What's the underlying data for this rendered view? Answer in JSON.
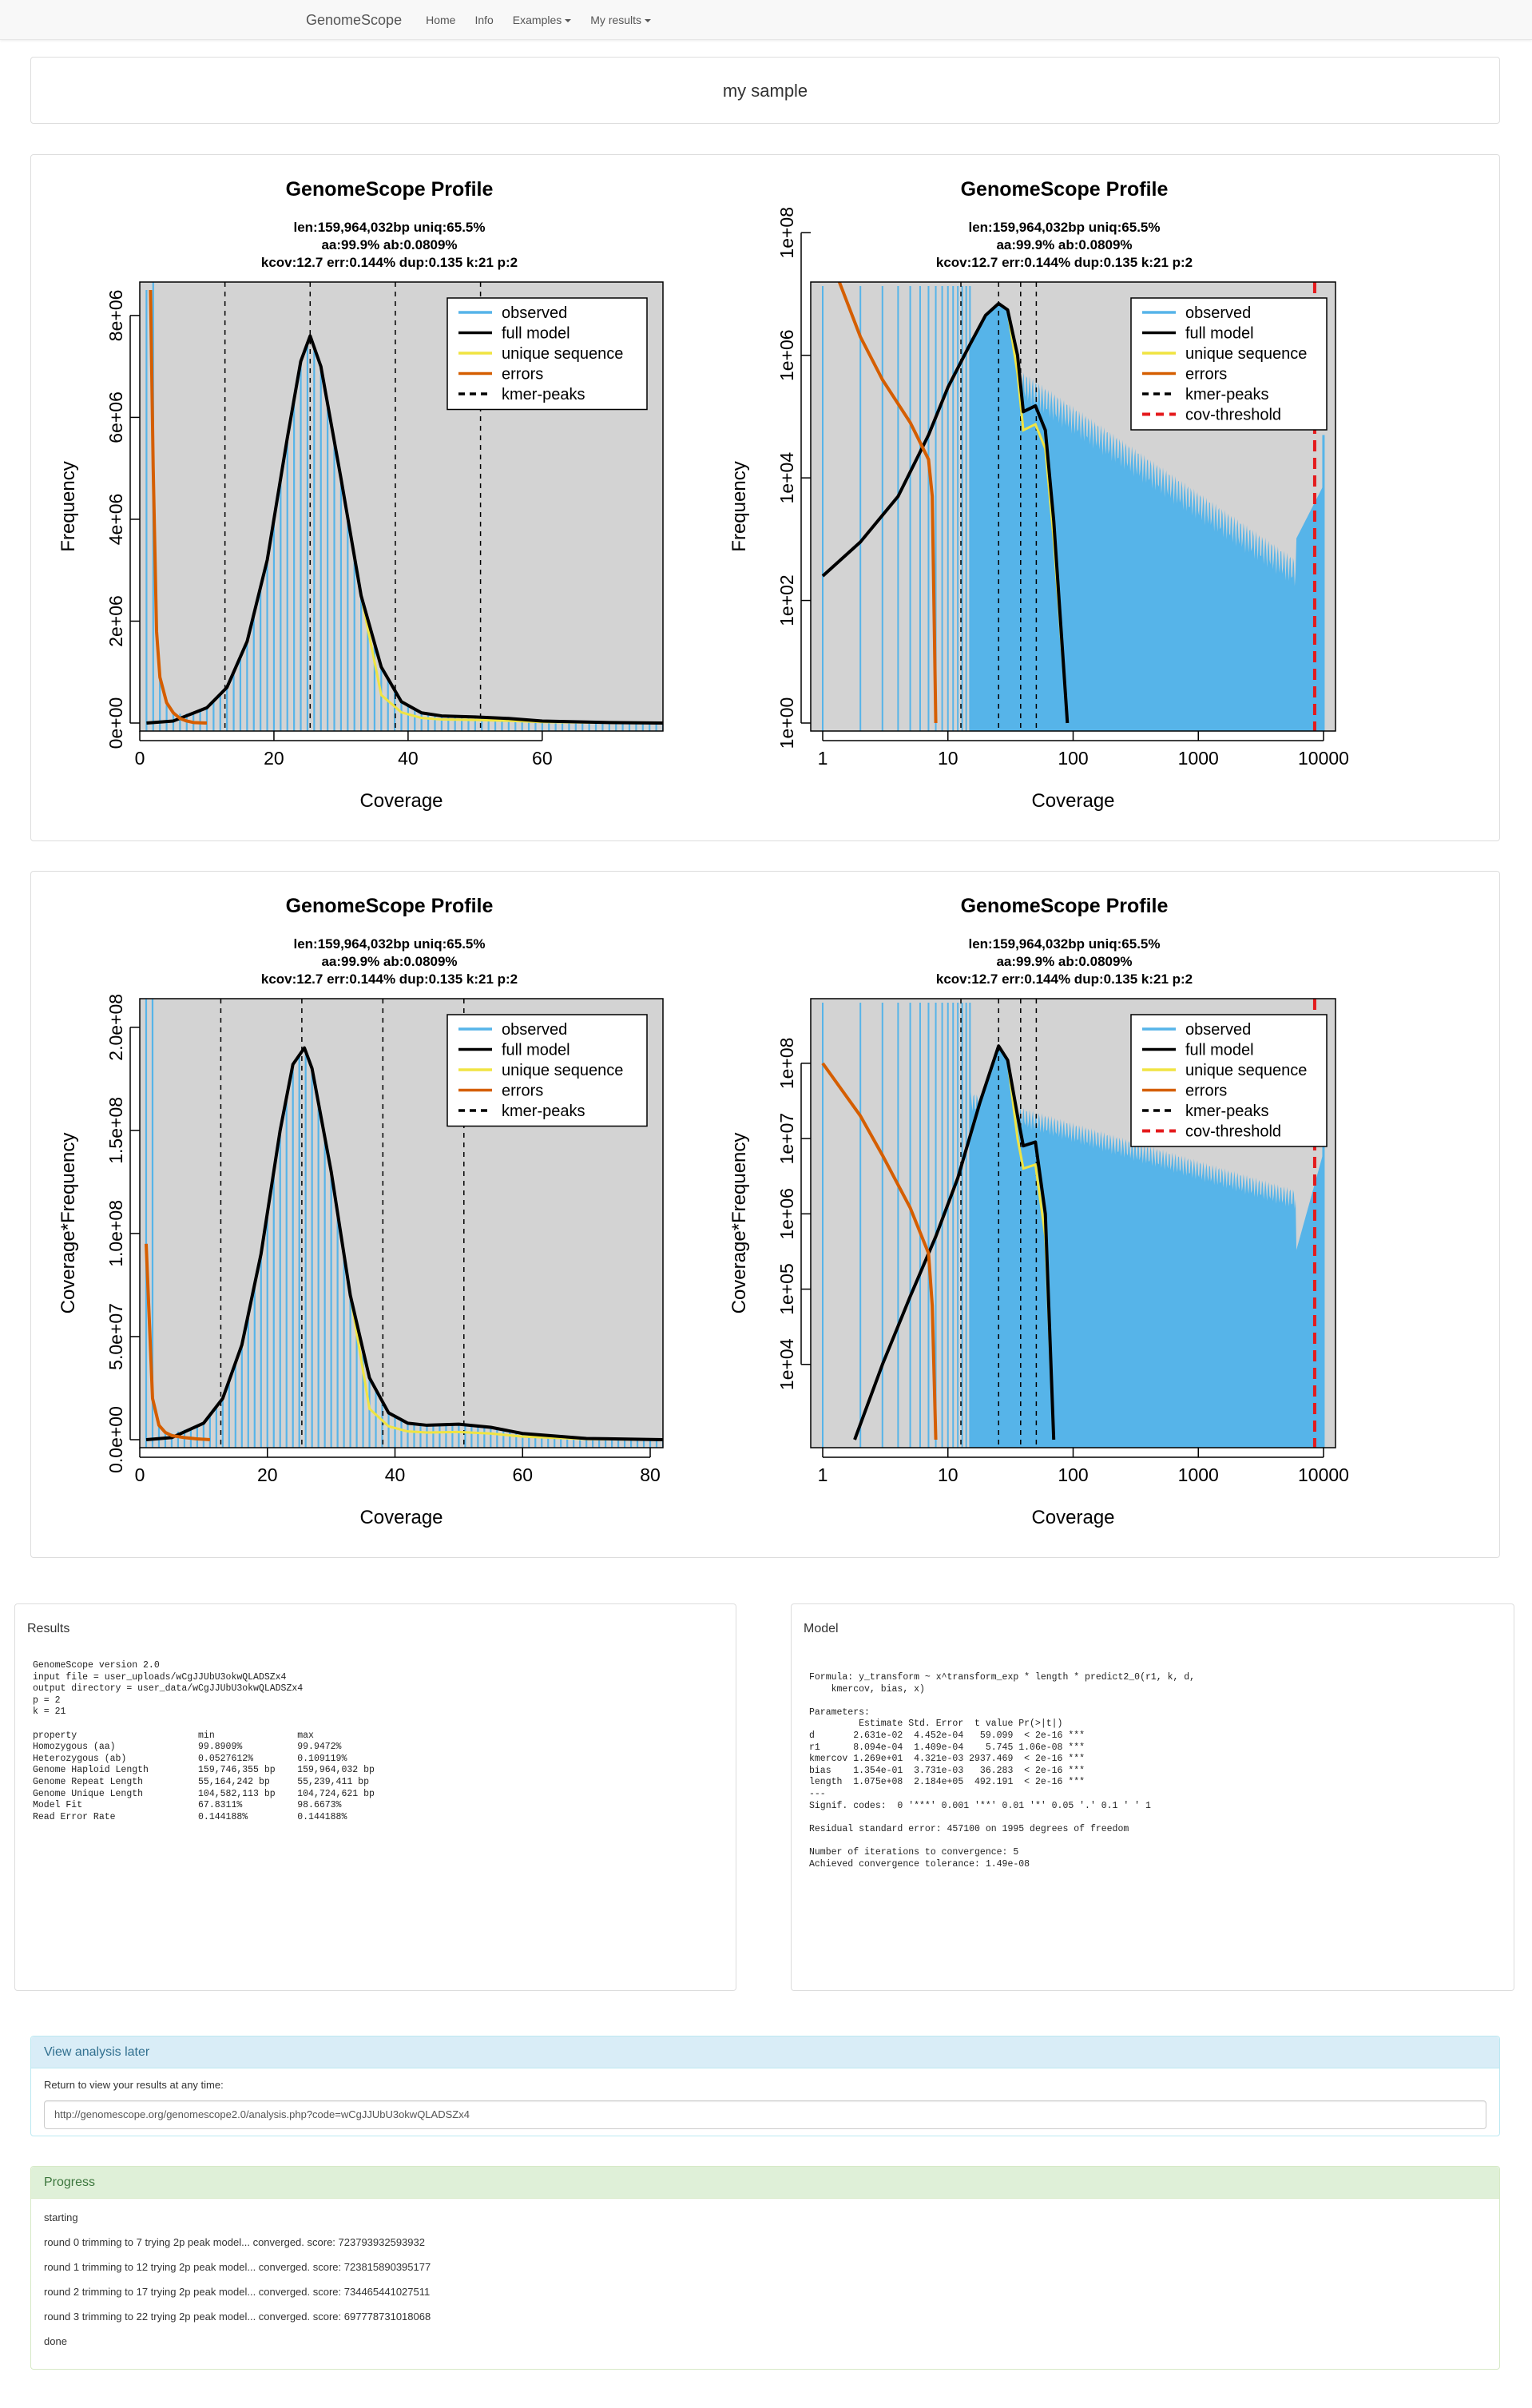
{
  "nav": {
    "brand": "GenomeScope",
    "items": [
      "Home",
      "Info",
      "Examples",
      "My results"
    ]
  },
  "sample_title": "my sample",
  "chart_data": [
    {
      "type": "line",
      "title": "GenomeScope Profile",
      "subtitle": [
        "len:159,964,032bp uniq:65.5%",
        "aa:99.9% ab:0.0809%",
        "kcov:12.7 err:0.144%  dup:0.135  k:21 p:2"
      ],
      "xlabel": "Coverage",
      "ylabel": "Frequency",
      "xscale": "linear",
      "yscale": "linear",
      "xlim": [
        0,
        78
      ],
      "ylim": [
        0,
        8500000
      ],
      "xticks": [
        "0",
        "20",
        "40",
        "60"
      ],
      "yticks": [
        "0e+00",
        "2e+06",
        "4e+06",
        "6e+06",
        "8e+06"
      ],
      "legend": [
        {
          "name": "observed",
          "color": "#56B4E9"
        },
        {
          "name": "full model",
          "color": "#000000"
        },
        {
          "name": "unique sequence",
          "color": "#F0E442"
        },
        {
          "name": "errors",
          "color": "#D55E00"
        },
        {
          "name": "kmer-peaks",
          "color": "#000000",
          "dash": true
        }
      ],
      "kmer_peaks": [
        12.7,
        25.4,
        38.1,
        50.8
      ],
      "series": [
        {
          "name": "full model",
          "x": [
            1,
            5,
            10,
            13,
            16,
            19,
            22,
            24,
            25.4,
            27,
            30,
            33,
            36,
            39,
            42,
            45,
            50,
            55,
            60,
            70,
            78
          ],
          "values": [
            0,
            40000,
            300000,
            700000,
            1600000,
            3200000,
            5600000,
            7100000,
            7600000,
            7000000,
            4800000,
            2500000,
            1100000,
            420000,
            200000,
            140000,
            120000,
            90000,
            40000,
            10000,
            0
          ]
        },
        {
          "name": "errors",
          "x": [
            1.6,
            2,
            2.5,
            3,
            4,
            5,
            6,
            7,
            8,
            10
          ],
          "values": [
            8500000,
            5000000,
            1800000,
            900000,
            400000,
            200000,
            90000,
            40000,
            10000,
            0
          ]
        }
      ]
    },
    {
      "type": "line",
      "title": "GenomeScope Profile",
      "subtitle": [
        "len:159,964,032bp uniq:65.5%",
        "aa:99.9% ab:0.0809%",
        "kcov:12.7 err:0.144%  dup:0.135  k:21 p:2"
      ],
      "xlabel": "Coverage",
      "ylabel": "Frequency",
      "xscale": "log",
      "yscale": "log",
      "xlim": [
        1,
        10000
      ],
      "ylim": [
        1,
        10000000
      ],
      "xticks": [
        "1",
        "10",
        "100",
        "1000",
        "10000"
      ],
      "yticks": [
        "1e+00",
        "1e+02",
        "1e+04",
        "1e+06",
        "1e+08"
      ],
      "legend": [
        {
          "name": "observed",
          "color": "#56B4E9"
        },
        {
          "name": "full model",
          "color": "#000000"
        },
        {
          "name": "unique sequence",
          "color": "#F0E442"
        },
        {
          "name": "errors",
          "color": "#D55E00"
        },
        {
          "name": "kmer-peaks",
          "color": "#000000",
          "dash": true
        },
        {
          "name": "cov-threshold",
          "color": "#E41A1C",
          "dash": true
        }
      ],
      "kmer_peaks": [
        12.7,
        25.4,
        38.1,
        50.8
      ],
      "cov_threshold": 8500,
      "series": [
        {
          "name": "full model",
          "x": [
            1,
            2,
            4,
            7,
            10,
            15,
            20,
            25.4,
            30,
            36,
            40,
            50,
            60,
            70,
            90
          ],
          "values": [
            250,
            900,
            5000,
            50000,
            300000,
            1500000,
            4500000,
            7000000,
            5500000,
            1000000,
            120000,
            150000,
            60000,
            2000,
            1
          ]
        },
        {
          "name": "errors",
          "x": [
            1,
            2,
            3,
            5,
            7,
            7.5,
            8
          ],
          "values": [
            80000000,
            2000000,
            400000,
            80000,
            20000,
            5000,
            1
          ]
        }
      ]
    },
    {
      "type": "line",
      "title": "GenomeScope Profile",
      "subtitle": [
        "len:159,964,032bp uniq:65.5%",
        "aa:99.9% ab:0.0809%",
        "kcov:12.7 err:0.144%  dup:0.135  k:21 p:2"
      ],
      "xlabel": "Coverage",
      "ylabel": "Coverage*Frequency",
      "xscale": "linear",
      "yscale": "linear",
      "xlim": [
        0,
        82
      ],
      "ylim": [
        0,
        210000000
      ],
      "xticks": [
        "0",
        "20",
        "40",
        "60",
        "80"
      ],
      "yticks": [
        "0.0e+00",
        "5.0e+07",
        "1.0e+08",
        "1.5e+08",
        "2.0e+08"
      ],
      "legend": [
        {
          "name": "observed",
          "color": "#56B4E9"
        },
        {
          "name": "full model",
          "color": "#000000"
        },
        {
          "name": "unique sequence",
          "color": "#F0E442"
        },
        {
          "name": "errors",
          "color": "#D55E00"
        },
        {
          "name": "kmer-peaks",
          "color": "#000000",
          "dash": true
        }
      ],
      "kmer_peaks": [
        12.7,
        25.4,
        38.1,
        50.8
      ],
      "series": [
        {
          "name": "full model",
          "x": [
            1,
            5,
            10,
            13,
            16,
            19,
            22,
            24,
            25.8,
            27,
            30,
            33,
            36,
            39,
            42,
            45,
            50,
            55,
            60,
            70,
            82
          ],
          "values": [
            0,
            1000000,
            8000000,
            20000000,
            46000000,
            90000000,
            150000000,
            182000000,
            190000000,
            180000000,
            130000000,
            70000000,
            30000000,
            13000000,
            8000000,
            7000000,
            7500000,
            6000000,
            3000000,
            600000,
            0
          ]
        },
        {
          "name": "errors",
          "x": [
            1,
            2,
            3,
            4,
            5,
            7,
            9,
            11
          ],
          "values": [
            95000000,
            20000000,
            7000000,
            3500000,
            2000000,
            1000000,
            400000,
            0
          ]
        }
      ]
    },
    {
      "type": "line",
      "title": "GenomeScope Profile",
      "subtitle": [
        "len:159,964,032bp uniq:65.5%",
        "aa:99.9% ab:0.0809%",
        "kcov:12.7 err:0.144%  dup:0.135  k:21 p:2"
      ],
      "xlabel": "Coverage",
      "ylabel": "Coverage*Frequency",
      "xscale": "log",
      "yscale": "log",
      "xlim": [
        1,
        10000
      ],
      "ylim": [
        1000,
        500000000
      ],
      "xticks": [
        "1",
        "10",
        "100",
        "1000",
        "10000"
      ],
      "yticks": [
        "1e+04",
        "1e+05",
        "1e+06",
        "1e+07",
        "1e+08"
      ],
      "legend": [
        {
          "name": "observed",
          "color": "#56B4E9"
        },
        {
          "name": "full model",
          "color": "#000000"
        },
        {
          "name": "unique sequence",
          "color": "#F0E442"
        },
        {
          "name": "errors",
          "color": "#D55E00"
        },
        {
          "name": "kmer-peaks",
          "color": "#000000",
          "dash": true
        },
        {
          "name": "cov-threshold",
          "color": "#E41A1C",
          "dash": true
        }
      ],
      "kmer_peaks": [
        12.7,
        25.4,
        38.1,
        50.8
      ],
      "cov_threshold": 8500,
      "series": [
        {
          "name": "full model",
          "x": [
            1.8,
            3,
            5,
            8,
            12,
            18,
            25.4,
            30,
            36,
            40,
            50,
            60,
            70
          ],
          "values": [
            1000,
            10000,
            80000,
            500000,
            3000000,
            30000000,
            170000000,
            110000000,
            20000000,
            8000000,
            9000000,
            1000000,
            1000
          ]
        },
        {
          "name": "errors",
          "x": [
            1,
            2,
            3,
            5,
            7,
            7.5,
            8
          ],
          "values": [
            100000000,
            20000000,
            6000000,
            1200000,
            300000,
            60000,
            1000
          ]
        }
      ]
    }
  ],
  "results": {
    "title": "Results",
    "lines": [
      "GenomeScope version 2.0",
      "input file = user_uploads/wCgJJUbU3okwQLADSZx4",
      "output directory = user_data/wCgJJUbU3okwQLADSZx4",
      "p = 2",
      "k = 21",
      "",
      "property                      min               max",
      "Homozygous (aa)               99.8909%          99.9472%",
      "Heterozygous (ab)             0.0527612%        0.109119%",
      "Genome Haploid Length         159,746,355 bp    159,964,032 bp",
      "Genome Repeat Length          55,164,242 bp     55,239,411 bp",
      "Genome Unique Length          104,582,113 bp    104,724,621 bp",
      "Model Fit                     67.8311%          98.6673%",
      "Read Error Rate               0.144188%         0.144188%"
    ]
  },
  "model": {
    "title": "Model",
    "lines": [
      "Formula: y_transform ~ x^transform_exp * length * predict2_0(r1, k, d,",
      "    kmercov, bias, x)",
      "",
      "Parameters:",
      "         Estimate Std. Error  t value Pr(>|t|)",
      "d       2.631e-02  4.452e-04   59.099  < 2e-16 ***",
      "r1      8.094e-04  1.409e-04    5.745 1.06e-08 ***",
      "kmercov 1.269e+01  4.321e-03 2937.469  < 2e-16 ***",
      "bias    1.354e-01  3.731e-03   36.283  < 2e-16 ***",
      "length  1.075e+08  2.184e+05  492.191  < 2e-16 ***",
      "---",
      "Signif. codes:  0 '***' 0.001 '**' 0.01 '*' 0.05 '.' 0.1 ' ' 1",
      "",
      "Residual standard error: 457100 on 1995 degrees of freedom",
      "",
      "Number of iterations to convergence: 5",
      "Achieved convergence tolerance: 1.49e-08"
    ]
  },
  "later": {
    "title": "View analysis later",
    "text": "Return to view your results at any time:",
    "url": "http://genomescope.org/genomescope2.0/analysis.php?code=wCgJJUbU3okwQLADSZx4"
  },
  "progress": {
    "title": "Progress",
    "lines": [
      "starting",
      "round 0 trimming to 7 trying 2p peak model... converged. score: 723793932593932",
      "round 1 trimming to 12 trying 2p peak model... converged. score: 723815890395177",
      "round 2 trimming to 17 trying 2p peak model... converged. score: 734465441027511",
      "round 3 trimming to 22 trying 2p peak model... converged. score: 697778731018068",
      "done"
    ]
  }
}
